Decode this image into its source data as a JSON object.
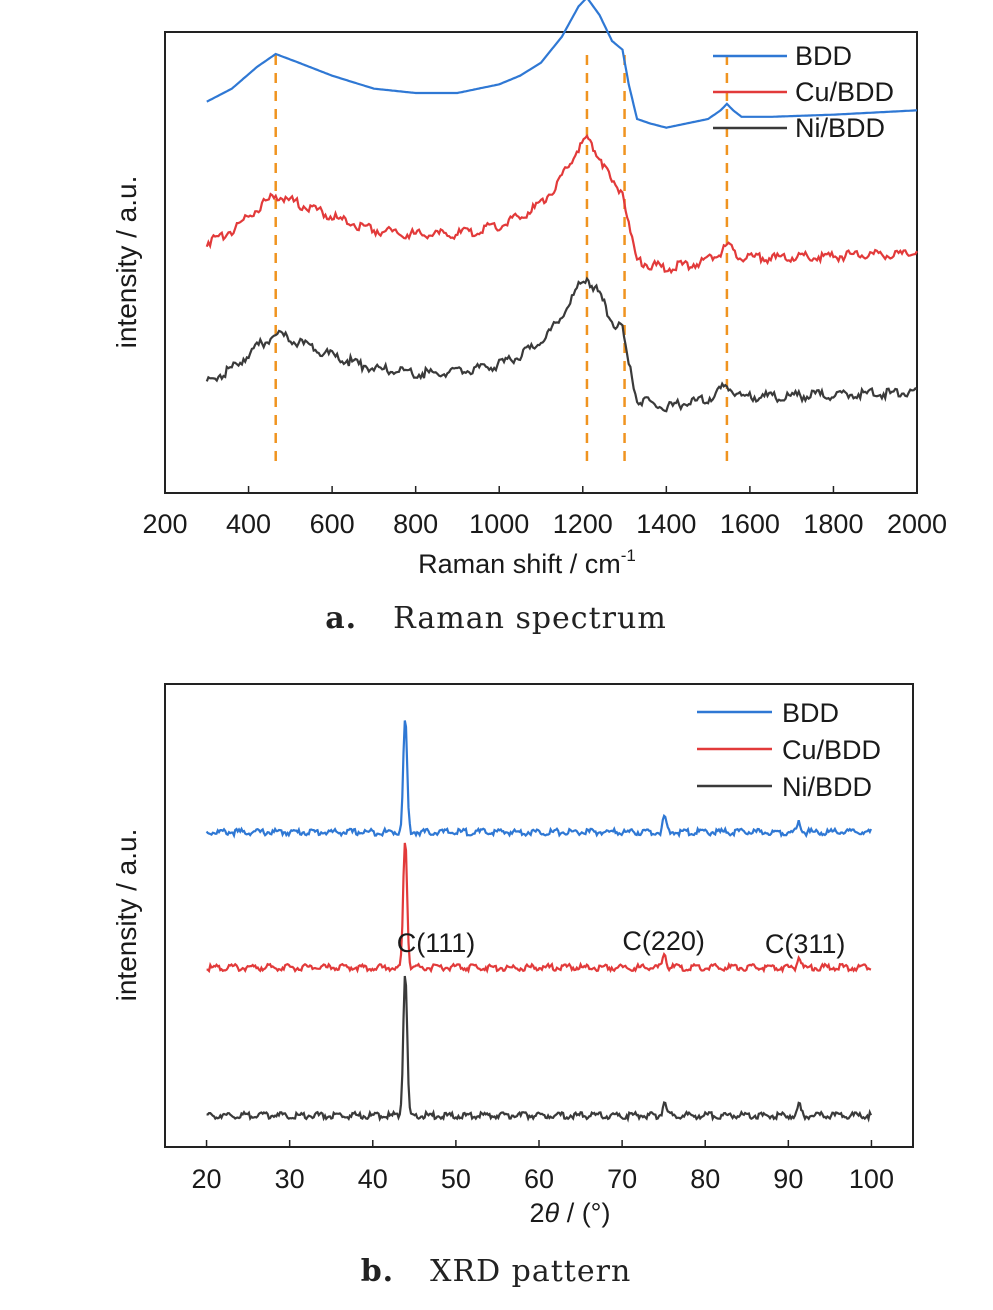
{
  "figure": {
    "colors": {
      "BDD": "#2f78d4",
      "Cu/BDD": "#e23a3a",
      "Ni/BDD": "#3a3a3a",
      "guide": "#f09420"
    }
  },
  "chart_data": [
    {
      "id": "a",
      "type": "line",
      "caption_label": "a.",
      "caption_text": "Raman spectrum",
      "xlabel": "Raman shift / cm",
      "xlabel_sup": "-1",
      "ylabel": "intensity / a.u.",
      "xlim": [
        200,
        2000
      ],
      "xticks": [
        "200",
        "400",
        "600",
        "800",
        "1000",
        "1200",
        "1400",
        "1600",
        "1800",
        "2000"
      ],
      "legend_position": "top-right",
      "guide_lines": [
        465,
        1210,
        1300,
        1545
      ],
      "series": [
        {
          "name": "BDD",
          "x": [
            300,
            360,
            420,
            465,
            520,
            600,
            700,
            800,
            900,
            1000,
            1050,
            1100,
            1150,
            1190,
            1210,
            1240,
            1270,
            1295,
            1310,
            1330,
            1360,
            1400,
            1450,
            1500,
            1530,
            1545,
            1560,
            1580,
            1650,
            1800,
            2000
          ],
          "y": [
            0.88,
            0.91,
            0.96,
            0.99,
            0.97,
            0.94,
            0.91,
            0.9,
            0.9,
            0.92,
            0.94,
            0.97,
            1.03,
            1.1,
            1.12,
            1.08,
            1.02,
            1.0,
            0.92,
            0.84,
            0.83,
            0.82,
            0.83,
            0.84,
            0.86,
            0.875,
            0.86,
            0.845,
            0.845,
            0.85,
            0.86
          ]
        },
        {
          "name": "Cu/BDD",
          "x": [
            300,
            360,
            420,
            465,
            520,
            600,
            700,
            800,
            900,
            1000,
            1050,
            1100,
            1150,
            1190,
            1210,
            1240,
            1270,
            1295,
            1310,
            1330,
            1360,
            1400,
            1450,
            1500,
            1530,
            1545,
            1560,
            1580,
            1650,
            1800,
            2000
          ],
          "y": [
            0.56,
            0.59,
            0.64,
            0.67,
            0.65,
            0.62,
            0.59,
            0.58,
            0.58,
            0.6,
            0.62,
            0.65,
            0.71,
            0.78,
            0.8,
            0.76,
            0.7,
            0.68,
            0.6,
            0.52,
            0.51,
            0.5,
            0.51,
            0.52,
            0.54,
            0.555,
            0.54,
            0.525,
            0.525,
            0.53,
            0.535
          ]
        },
        {
          "name": "Ni/BDD",
          "x": [
            300,
            360,
            420,
            465,
            520,
            600,
            700,
            800,
            900,
            1000,
            1050,
            1100,
            1150,
            1190,
            1210,
            1240,
            1270,
            1295,
            1310,
            1330,
            1360,
            1400,
            1450,
            1500,
            1530,
            1545,
            1560,
            1580,
            1650,
            1800,
            2000
          ],
          "y": [
            0.24,
            0.27,
            0.32,
            0.35,
            0.33,
            0.3,
            0.27,
            0.26,
            0.26,
            0.28,
            0.3,
            0.33,
            0.39,
            0.46,
            0.48,
            0.44,
            0.38,
            0.36,
            0.28,
            0.2,
            0.19,
            0.18,
            0.19,
            0.2,
            0.22,
            0.235,
            0.22,
            0.205,
            0.205,
            0.21,
            0.215
          ]
        }
      ]
    },
    {
      "id": "b",
      "type": "line",
      "caption_label": "b.",
      "caption_text": "XRD pattern",
      "xlabel_prefix": "2",
      "xlabel_theta": "θ",
      "xlabel_suffix": " / (°)",
      "ylabel": "intensity / a.u.",
      "xlim": [
        15,
        105
      ],
      "xticks": [
        "20",
        "30",
        "40",
        "50",
        "60",
        "70",
        "80",
        "90",
        "100"
      ],
      "legend_position": "top-right",
      "annotations": [
        {
          "text": "C(111)",
          "x": 44
        },
        {
          "text": "C(220)",
          "x": 75
        },
        {
          "text": "C(311)",
          "x": 91.3
        }
      ],
      "series": [
        {
          "name": "BDD",
          "baseline": 0.72,
          "peaks": [
            {
              "x": 43.9,
              "h": 0.27
            },
            {
              "x": 75.1,
              "h": 0.035
            },
            {
              "x": 91.3,
              "h": 0.025
            }
          ],
          "x_range": [
            20,
            100
          ]
        },
        {
          "name": "Cu/BDD",
          "baseline": 0.4,
          "peaks": [
            {
              "x": 43.9,
              "h": 0.31
            },
            {
              "x": 75.1,
              "h": 0.035
            },
            {
              "x": 91.3,
              "h": 0.025
            }
          ],
          "x_range": [
            20,
            100
          ]
        },
        {
          "name": "Ni/BDD",
          "baseline": 0.05,
          "peaks": [
            {
              "x": 43.9,
              "h": 0.34
            },
            {
              "x": 75.1,
              "h": 0.035
            },
            {
              "x": 91.3,
              "h": 0.025
            }
          ],
          "x_range": [
            20,
            100
          ]
        }
      ]
    }
  ]
}
